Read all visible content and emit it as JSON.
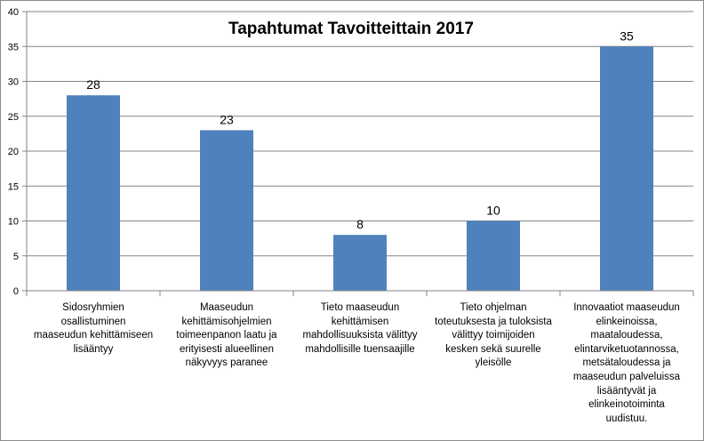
{
  "chart_data": {
    "type": "bar",
    "title": "Tapahtumat Tavoitteittain 2017",
    "xlabel": "",
    "ylabel": "",
    "ylim": [
      0,
      40
    ],
    "yticks": [
      0,
      5,
      10,
      15,
      20,
      25,
      30,
      35,
      40
    ],
    "grid": true,
    "legend": "none",
    "bar_color": "#4f81bd",
    "categories": [
      "Sidosryhmien osallistuminen maaseudun kehittämiseen lisääntyy",
      "Maaseudun kehittämisohjelmien toimeenpanon laatu ja erityisesti alueellinen näkyvyys paranee",
      "Tieto maaseudun kehittämisen mahdollisuuksista välittyy mahdollisille tuensaajille",
      "Tieto ohjelman toteutuksesta ja tuloksista välittyy toimijoiden kesken sekä suurelle yleisölle",
      "Innovaatiot maaseudun elinkeinoissa, maataloudessa, elintarviketuotannossa, metsätaloudessa ja maaseudun palveluissa lisääntyvät ja elinkeinotoiminta uudistuu."
    ],
    "category_lines": [
      [
        "Sidosryhmien",
        "osallistuminen",
        "maaseudun kehittämiseen",
        "lisääntyy"
      ],
      [
        "Maaseudun",
        "kehittämisohjelmien",
        "toimeenpanon laatu ja",
        "erityisesti alueellinen",
        "näkyvyys paranee"
      ],
      [
        "Tieto maaseudun",
        "kehittämisen",
        "mahdollisuuksista välittyy",
        "mahdollisille tuensaajille"
      ],
      [
        "Tieto ohjelman",
        "toteutuksesta ja tuloksista",
        "välittyy toimijoiden",
        "kesken sekä suurelle",
        "yleisölle"
      ],
      [
        "Innovaatiot maaseudun",
        "elinkeinoissa,",
        "maataloudessa,",
        "elintarviketuotannossa,",
        "metsätaloudessa ja",
        "maaseudun palveluissa",
        "lisääntyvät ja",
        "elinkeinotoiminta",
        "uudistuu."
      ]
    ],
    "values": [
      28,
      23,
      8,
      10,
      35
    ]
  }
}
